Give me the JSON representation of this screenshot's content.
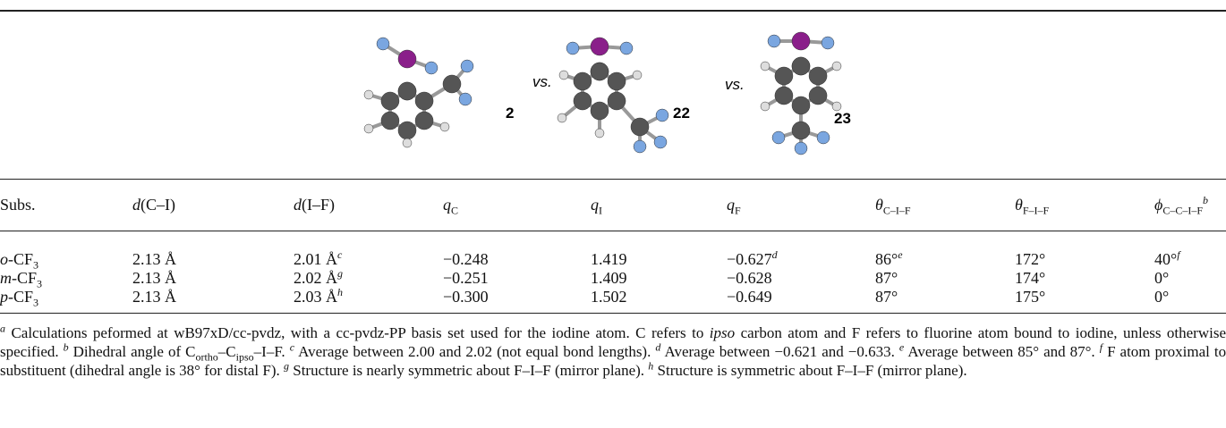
{
  "figure": {
    "compounds": [
      "2",
      "22",
      "23"
    ],
    "separators": [
      "vs.",
      "vs."
    ]
  },
  "table": {
    "header": [
      {
        "text": "Subs."
      },
      {
        "italic": "d",
        "text": "(C–I)"
      },
      {
        "italic": "d",
        "text": "(I–F)"
      },
      {
        "italic": "q",
        "sub": "C"
      },
      {
        "italic": "q",
        "sub": "I"
      },
      {
        "italic": "q",
        "sub": "F"
      },
      {
        "italic": "θ",
        "sub": "C–I–F"
      },
      {
        "italic": "θ",
        "sub": "F–I–F"
      },
      {
        "italic": "ϕ",
        "sub": "C–C–I–F",
        "sup": "b"
      }
    ],
    "rows": [
      [
        {
          "italic": "o",
          "text": "-CF",
          "sub": "3"
        },
        {
          "text": "2.13 Å"
        },
        {
          "text": "2.01 Å",
          "sup": "c"
        },
        {
          "text": "−0.248"
        },
        {
          "text": "1.419"
        },
        {
          "text": "−0.627",
          "sup": "d"
        },
        {
          "text": "86°",
          "sup": "e"
        },
        {
          "text": "172°"
        },
        {
          "text": "40°",
          "sup": "f"
        }
      ],
      [
        {
          "italic": "m",
          "text": "-CF",
          "sub": "3"
        },
        {
          "text": "2.13 Å"
        },
        {
          "text": "2.02 Å",
          "sup": "g"
        },
        {
          "text": "−0.251"
        },
        {
          "text": "1.409"
        },
        {
          "text": "−0.628"
        },
        {
          "text": "87°"
        },
        {
          "text": "174°"
        },
        {
          "text": "0°"
        }
      ],
      [
        {
          "italic": "p",
          "text": "-CF",
          "sub": "3"
        },
        {
          "text": "2.13 Å"
        },
        {
          "text": "2.03 Å",
          "sup": "h"
        },
        {
          "text": "−0.300"
        },
        {
          "text": "1.502"
        },
        {
          "text": "−0.649"
        },
        {
          "text": "87°"
        },
        {
          "text": "175°"
        },
        {
          "text": "0°"
        }
      ]
    ]
  },
  "footnotes": [
    {
      "mark": "a",
      "parts": [
        {
          "text": "Calculations peformed at wB97xD/cc-pvdz, with a cc-pvdz-PP basis set used for the iodine atom. C refers to "
        },
        {
          "italic": "ipso"
        },
        {
          "text": " carbon atom and F refers to fluorine atom bound to iodine, unless otherwise specified."
        }
      ]
    },
    {
      "mark": "b",
      "parts": [
        {
          "text": "Dihedral angle of C"
        },
        {
          "sub": "ortho"
        },
        {
          "text": "–C"
        },
        {
          "sub": "ipso"
        },
        {
          "text": "–I–F."
        }
      ]
    },
    {
      "mark": "c",
      "parts": [
        {
          "text": "Average between 2.00 and 2.02 (not equal bond lengths)."
        }
      ]
    },
    {
      "mark": "d",
      "parts": [
        {
          "text": "Average between −0.621 and −0.633."
        }
      ]
    },
    {
      "mark": "e",
      "parts": [
        {
          "text": "Average between 85° and 87°."
        }
      ]
    },
    {
      "mark": "f",
      "parts": [
        {
          "text": "F atom proximal to substituent (dihedral angle is 38° for distal F)."
        }
      ]
    },
    {
      "mark": "g",
      "parts": [
        {
          "text": "Structure is nearly symmetric about F–I–F (mirror plane)."
        }
      ]
    },
    {
      "mark": "h",
      "parts": [
        {
          "text": "Structure is symmetric about F–I–F (mirror plane)."
        }
      ]
    }
  ]
}
